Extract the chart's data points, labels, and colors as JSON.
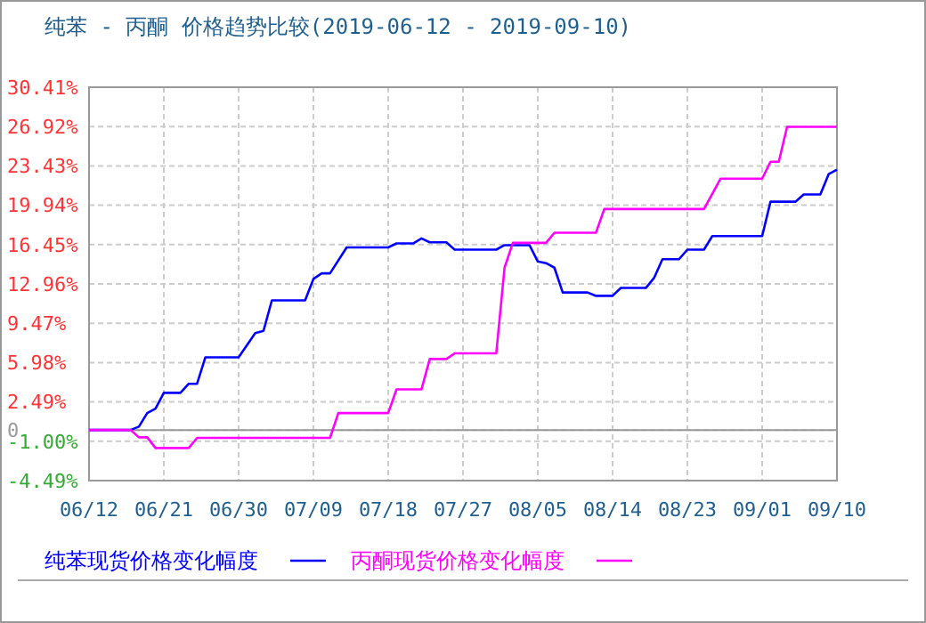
{
  "chart_data": {
    "type": "line",
    "title": "纯苯 - 丙酮 价格趋势比较(2019-06-12 - 2019-09-10)",
    "xlim": [
      "2019-06-12",
      "2019-09-10"
    ],
    "xticks": [
      {
        "value": "2019-06-12",
        "label": "06/12"
      },
      {
        "value": "2019-06-21",
        "label": "06/21"
      },
      {
        "value": "2019-06-30",
        "label": "06/30"
      },
      {
        "value": "2019-07-09",
        "label": "07/09"
      },
      {
        "value": "2019-07-18",
        "label": "07/18"
      },
      {
        "value": "2019-07-27",
        "label": "07/27"
      },
      {
        "value": "2019-08-05",
        "label": "08/05"
      },
      {
        "value": "2019-08-14",
        "label": "08/14"
      },
      {
        "value": "2019-08-23",
        "label": "08/23"
      },
      {
        "value": "2019-09-01",
        "label": "09/01"
      },
      {
        "value": "2019-09-10",
        "label": "09/10"
      }
    ],
    "ylim": [
      -4.49,
      30.41
    ],
    "yticks": [
      {
        "value": -4.49,
        "label": "-4.49%"
      },
      {
        "value": -1,
        "label": "-1.00%"
      },
      {
        "value": 0,
        "label": "0"
      },
      {
        "value": 2.49,
        "label": "2.49%"
      },
      {
        "value": 5.98,
        "label": "5.98%"
      },
      {
        "value": 9.47,
        "label": "9.47%"
      },
      {
        "value": 12.96,
        "label": "12.96%"
      },
      {
        "value": 16.45,
        "label": "16.45%"
      },
      {
        "value": 19.94,
        "label": "19.94%"
      },
      {
        "value": 23.43,
        "label": "23.43%"
      },
      {
        "value": 26.92,
        "label": "26.92%"
      },
      {
        "value": 30.41,
        "label": "30.41%"
      }
    ],
    "grid": true,
    "legend": "bottom",
    "marker": "none",
    "line_style": "solid",
    "ref_lines": [
      {
        "axis": "y",
        "value": 0,
        "color": "#999999",
        "line_style": "solid"
      }
    ],
    "series": [
      {
        "name": "纯苯现货价格变化幅度",
        "color": "#0000ff",
        "x": [
          "2019-06-12",
          "2019-06-17",
          "2019-06-18",
          "2019-06-19",
          "2019-06-20",
          "2019-06-21",
          "2019-06-23",
          "2019-06-24",
          "2019-06-25",
          "2019-06-26",
          "2019-06-30",
          "2019-07-02",
          "2019-07-03",
          "2019-07-04",
          "2019-07-08",
          "2019-07-09",
          "2019-07-10",
          "2019-07-11",
          "2019-07-13",
          "2019-07-18",
          "2019-07-19",
          "2019-07-21",
          "2019-07-22",
          "2019-07-23",
          "2019-07-25",
          "2019-07-26",
          "2019-07-31",
          "2019-08-01",
          "2019-08-04",
          "2019-08-05",
          "2019-08-06",
          "2019-08-07",
          "2019-08-08",
          "2019-08-11",
          "2019-08-12",
          "2019-08-14",
          "2019-08-15",
          "2019-08-18",
          "2019-08-19",
          "2019-08-20",
          "2019-08-22",
          "2019-08-23",
          "2019-08-25",
          "2019-08-26",
          "2019-09-01",
          "2019-09-02",
          "2019-09-05",
          "2019-09-06",
          "2019-09-08",
          "2019-09-09",
          "2019-09-10"
        ],
        "values": [
          0,
          0,
          0.3,
          1.5,
          1.9,
          3.3,
          3.3,
          4.1,
          4.1,
          6.45,
          6.45,
          8.6,
          8.8,
          11.5,
          11.5,
          13.4,
          13.9,
          13.9,
          16.2,
          16.2,
          16.55,
          16.55,
          17.0,
          16.65,
          16.65,
          16.0,
          16.0,
          16.4,
          16.4,
          14.95,
          14.8,
          14.4,
          12.2,
          12.2,
          11.9,
          11.9,
          12.6,
          12.6,
          13.5,
          15.15,
          15.15,
          16.0,
          16.0,
          17.2,
          17.2,
          20.25,
          20.25,
          20.9,
          20.9,
          22.7,
          23.1
        ]
      },
      {
        "name": "丙酮现货价格变化幅度",
        "color": "#ff00ff",
        "x": [
          "2019-06-12",
          "2019-06-17",
          "2019-06-18",
          "2019-06-19",
          "2019-06-20",
          "2019-06-24",
          "2019-06-25",
          "2019-07-11",
          "2019-07-12",
          "2019-07-18",
          "2019-07-19",
          "2019-07-22",
          "2019-07-23",
          "2019-07-25",
          "2019-07-26",
          "2019-07-31",
          "2019-08-01",
          "2019-08-02",
          "2019-08-06",
          "2019-08-07",
          "2019-08-12",
          "2019-08-13",
          "2019-08-25",
          "2019-08-27",
          "2019-09-01",
          "2019-09-02",
          "2019-09-03",
          "2019-09-04",
          "2019-09-10"
        ],
        "values": [
          0,
          0,
          -0.65,
          -0.65,
          -1.6,
          -1.6,
          -0.7,
          -0.7,
          1.5,
          1.5,
          3.6,
          3.6,
          6.3,
          6.3,
          6.8,
          6.8,
          14.4,
          16.6,
          16.6,
          17.5,
          17.5,
          19.6,
          19.6,
          22.3,
          22.3,
          23.8,
          23.8,
          26.9,
          26.9
        ]
      }
    ]
  }
}
